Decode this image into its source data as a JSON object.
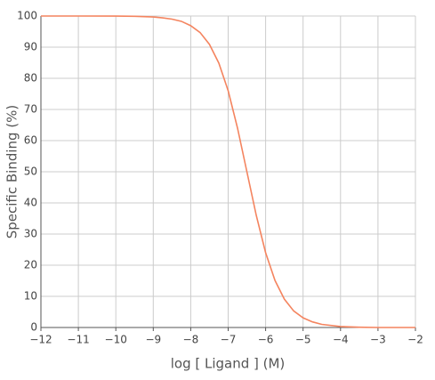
{
  "chart_data": {
    "type": "line",
    "x_label": "log [ Ligand ] (M)",
    "y_label": "Specific Binding (%)",
    "x": [
      -12,
      -11,
      -10,
      -9.5,
      -9,
      -8.75,
      -8.5,
      -8.25,
      -8,
      -7.75,
      -7.5,
      -7.25,
      -7,
      -6.75,
      -6.5,
      -6.25,
      -6,
      -5.75,
      -5.5,
      -5.25,
      -5,
      -4.75,
      -4.5,
      -4,
      -3.5,
      -3,
      -2
    ],
    "series": [
      {
        "color": "#f4845f",
        "values": [
          100,
          100,
          99.97,
          99.9,
          99.7,
          99.4,
          99,
          98.3,
          96.9,
          94.7,
          90.9,
          84.9,
          76,
          64,
          50,
          36,
          24,
          15.1,
          9.1,
          5.3,
          3.1,
          1.8,
          1,
          0.3,
          0.1,
          0,
          0
        ]
      }
    ],
    "xlim": [
      -12,
      -2
    ],
    "xticks": [
      {
        "value": -12,
        "label": "−12"
      },
      {
        "value": -11,
        "label": "−11"
      },
      {
        "value": -10,
        "label": "−10"
      },
      {
        "value": -9,
        "label": "−9"
      },
      {
        "value": -8,
        "label": "−8"
      },
      {
        "value": -7,
        "label": "−7"
      },
      {
        "value": -6,
        "label": "−6"
      },
      {
        "value": -5,
        "label": "−5"
      },
      {
        "value": -4,
        "label": "−4"
      },
      {
        "value": -3,
        "label": "−3"
      },
      {
        "value": -2,
        "label": "−2"
      }
    ],
    "ylim": [
      0,
      100
    ],
    "yticks": [
      0,
      10,
      20,
      30,
      40,
      50,
      60,
      70,
      80,
      90,
      100
    ],
    "grid": true
  }
}
